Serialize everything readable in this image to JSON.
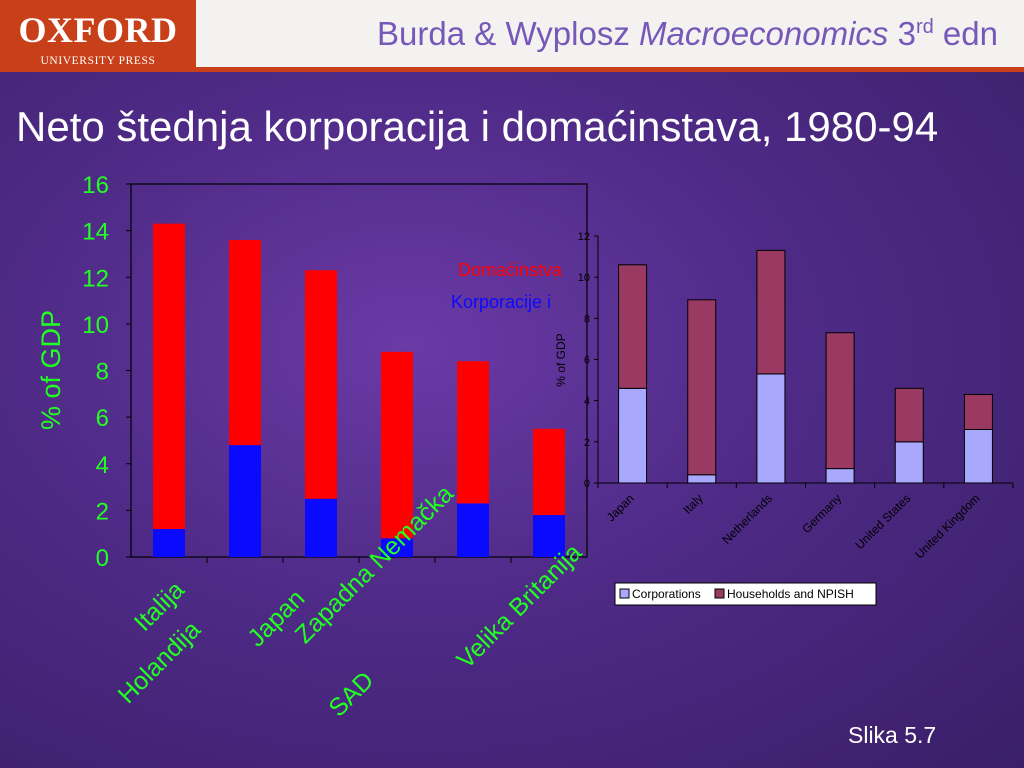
{
  "header": {
    "logo_main": "OXFORD",
    "logo_sub": "UNIVERSITY PRESS",
    "book_authors": "Burda & Wyplosz ",
    "book_name": "Macroeconomics",
    "edition_num": " 3",
    "edition_sup": "rd",
    "edition_word": " edn"
  },
  "slide": {
    "title": "Neto štednja korporacija i domaćinstava, 1980-94",
    "caption": "Slika 5.7"
  },
  "colors": {
    "left_corporations": "#0a0aff",
    "left_households": "#ff0000",
    "right_corporations": "#a8a8ff",
    "right_households": "#9a3a62",
    "accent_green": "#22ff22",
    "header_rule": "#c8401a"
  },
  "chart_data": [
    {
      "type": "bar",
      "stacked": true,
      "categories": [
        "Italija",
        "Holandija",
        "Japan",
        "Zapadna Nemačka",
        "SAD",
        "Velika Britanija"
      ],
      "series": [
        {
          "name": "Korporacije i",
          "values": [
            1.2,
            4.8,
            2.5,
            0.8,
            2.3,
            1.8
          ]
        },
        {
          "name": "Domaćinstva",
          "values": [
            13.1,
            8.8,
            9.8,
            8.0,
            6.1,
            3.7
          ]
        }
      ],
      "ylabel": "% of GDP",
      "ylim": [
        0,
        16
      ],
      "yticks": [
        "0",
        "2",
        "4",
        "6",
        "8",
        "10",
        "12",
        "14",
        "16"
      ],
      "legend": "top-right"
    },
    {
      "type": "bar",
      "stacked": true,
      "categories": [
        "Japan",
        "Italy",
        "Netherlands",
        "Germany",
        "United States",
        "United Kingdom"
      ],
      "series": [
        {
          "name": "Corporations",
          "values": [
            4.6,
            0.4,
            5.3,
            0.7,
            2.0,
            2.6
          ]
        },
        {
          "name": "Households and NPISH",
          "values": [
            6.0,
            8.5,
            6.0,
            6.6,
            2.6,
            1.7
          ]
        }
      ],
      "ylabel": "% of GDP",
      "ylim": [
        0,
        12
      ],
      "yticks": [
        "0",
        "2",
        "4",
        "6",
        "8",
        "10",
        "12"
      ],
      "legend": "bottom"
    }
  ]
}
